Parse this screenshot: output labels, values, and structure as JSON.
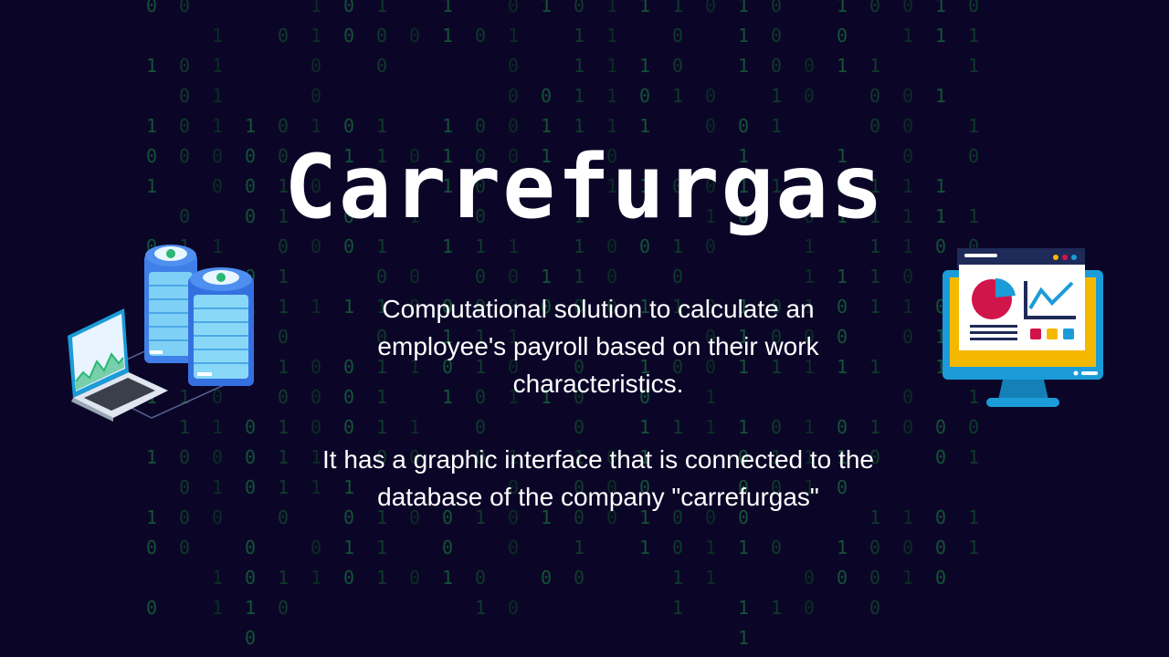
{
  "slide": {
    "title": "Carrefurgas",
    "description": "Computational solution to calculate an employee's payroll based on their work characteristics.",
    "detail": "It has a graphic interface that is connected to the database of the company \"carrefurgas\""
  },
  "illustrations": {
    "left": "server-laptop-icon",
    "right": "dashboard-monitor-icon"
  },
  "colors": {
    "background": "#0b0628",
    "text": "#ffffff",
    "binary_rain": "#0f3a2a",
    "accent_blue": "#1b9cd8",
    "accent_yellow": "#f5b800",
    "accent_magenta": "#d1144a"
  }
}
